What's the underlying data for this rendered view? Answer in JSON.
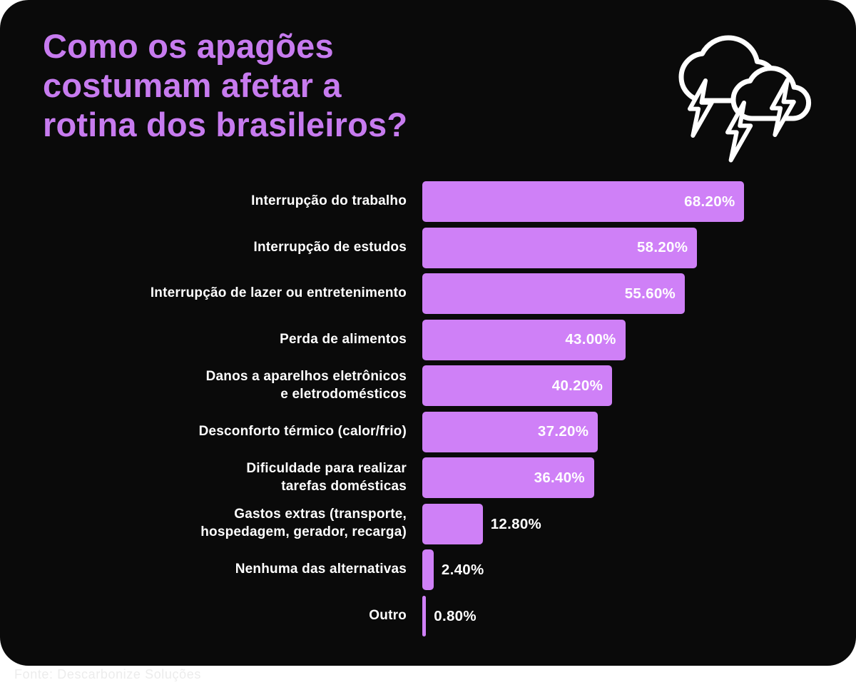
{
  "theme": {
    "page_bg": "#ffffff",
    "card_bg": "#0a0a0a",
    "title_color": "#c77bef",
    "bar_color": "#cf80f7",
    "label_color": "#ffffff",
    "value_color": "#ffffff",
    "footer_color": "#ececec",
    "icon_color": "#ffffff"
  },
  "header": {
    "title_lines": "Como os apagões\ncostumam afetar a\nrotina dos brasileiros?",
    "icon": "storm-clouds-lightning-icon"
  },
  "chart_data": {
    "type": "bar",
    "orientation": "horizontal",
    "title": "Como os apagões costumam afetar a rotina dos brasileiros?",
    "unit": "%",
    "xlim": [
      0,
      70
    ],
    "grid": false,
    "legend": false,
    "value_labels_shown": true,
    "categories": [
      "Interrupção do trabalho",
      "Interrupção de estudos",
      "Interrupção de lazer ou entretenimento",
      "Perda de alimentos",
      "Danos a aparelhos eletrônicos e eletrodomésticos",
      "Desconforto térmico (calor/frio)",
      "Dificuldade para realizar tarefas domésticas",
      "Gastos extras (transporte, hospedagem, gerador, recarga)",
      "Nenhuma das alternativas",
      "Outro"
    ],
    "values": [
      68.2,
      58.2,
      55.6,
      43.0,
      40.2,
      37.2,
      36.4,
      12.8,
      2.4,
      0.8
    ],
    "bars": [
      {
        "label": "Interrupção do trabalho",
        "label_display": "Interrupção do trabalho",
        "value": 68.2,
        "display": "68.20%"
      },
      {
        "label": "Interrupção de estudos",
        "label_display": "Interrupção de estudos",
        "value": 58.2,
        "display": "58.20%"
      },
      {
        "label": "Interrupção de lazer ou entretenimento",
        "label_display": "Interrupção de lazer ou entretenimento",
        "value": 55.6,
        "display": "55.60%"
      },
      {
        "label": "Perda de alimentos",
        "label_display": "Perda de alimentos",
        "value": 43.0,
        "display": "43.00%"
      },
      {
        "label": "Danos a aparelhos eletrônicos e eletrodomésticos",
        "label_display": "Danos a aparelhos eletrônicos\ne eletrodomésticos",
        "value": 40.2,
        "display": "40.20%"
      },
      {
        "label": "Desconforto térmico (calor/frio)",
        "label_display": "Desconforto térmico (calor/frio)",
        "value": 37.2,
        "display": "37.20%"
      },
      {
        "label": "Dificuldade para realizar tarefas domésticas",
        "label_display": "Dificuldade para realizar\ntarefas domésticas",
        "value": 36.4,
        "display": "36.40%"
      },
      {
        "label": "Gastos extras (transporte, hospedagem, gerador, recarga)",
        "label_display": "Gastos extras (transporte,\nhospedagem, gerador, recarga)",
        "value": 12.8,
        "display": "12.80%"
      },
      {
        "label": "Nenhuma das alternativas",
        "label_display": "Nenhuma das alternativas",
        "value": 2.4,
        "display": "2.40%"
      },
      {
        "label": "Outro",
        "label_display": "Outro",
        "value": 0.8,
        "display": "0.80%"
      }
    ]
  },
  "footer": {
    "source": "Fonte: Descarbonize Soluções"
  }
}
